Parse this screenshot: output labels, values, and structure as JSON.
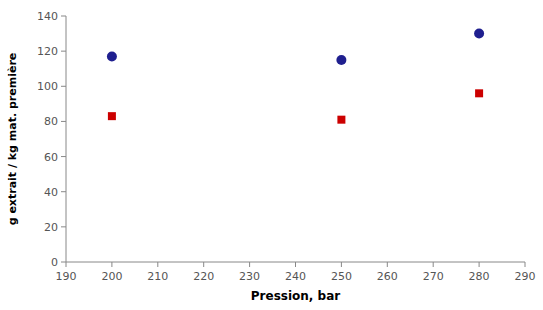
{
  "chart_data": {
    "type": "scatter",
    "xlabel": "Pression, bar",
    "ylabel": "g extrait / kg mat. première",
    "series": [
      {
        "color": "#1F1F8F",
        "marker": "circle",
        "x": [
          200,
          250,
          280
        ],
        "values": [
          117,
          115,
          130
        ]
      },
      {
        "color": "#CC0000",
        "marker": "square",
        "x": [
          200,
          250,
          280
        ],
        "values": [
          83,
          81,
          96
        ]
      }
    ],
    "xlim": [
      190,
      290
    ],
    "ylim": [
      0,
      140
    ],
    "xticks": [
      190,
      200,
      210,
      220,
      230,
      240,
      250,
      260,
      270,
      280,
      290
    ],
    "yticks": [
      0,
      20,
      40,
      60,
      80,
      100,
      120,
      140
    ],
    "grid": false
  }
}
